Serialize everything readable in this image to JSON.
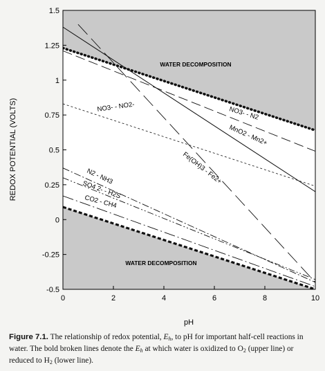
{
  "chart_data": {
    "type": "line",
    "xlabel": "pH",
    "ylabel": "REDOX POTENTIAL (VOLTS)",
    "xlim": [
      0,
      10
    ],
    "ylim": [
      -0.5,
      1.5
    ],
    "xticks": [
      "0",
      "2",
      "4",
      "6",
      "8",
      "10"
    ],
    "yticks": [
      "1.5",
      "1.25",
      "1",
      "0.75",
      "0.5",
      "0.25",
      "0",
      "-0.25",
      "-0.5"
    ],
    "region_labels": {
      "upper": "WATER DECOMPOSITION",
      "lower": "WATER DECOMPOSITION"
    },
    "series": [
      {
        "name": "water oxidation (O2)",
        "x": [
          0,
          10
        ],
        "y": [
          1.23,
          0.64
        ],
        "style": "bold-dotted"
      },
      {
        "name": "water reduction (H2)",
        "x": [
          0,
          10
        ],
        "y": [
          0.09,
          -0.5
        ],
        "style": "bold-dashed"
      },
      {
        "name": "NO3- - N2",
        "x": [
          0,
          10
        ],
        "y": [
          1.21,
          0.49
        ],
        "style": "long-dash"
      },
      {
        "name": "MnO2 - Mn2+",
        "x": [
          0,
          10
        ],
        "y": [
          1.38,
          0.2
        ],
        "style": "solid"
      },
      {
        "name": "NO3- - NO2-",
        "x": [
          0,
          10
        ],
        "y": [
          0.83,
          0.24
        ],
        "style": "short-dash"
      },
      {
        "name": "Fe(OH)3 - Fe2+",
        "x": [
          0.6,
          10
        ],
        "y": [
          1.4,
          -0.45
        ],
        "style": "long-dash-wide"
      },
      {
        "name": "N2 - NH3",
        "x": [
          0,
          10
        ],
        "y": [
          0.37,
          -0.45
        ],
        "style": "dash-dot"
      },
      {
        "name": "SO4 2- - H2S",
        "x": [
          0,
          10
        ],
        "y": [
          0.3,
          -0.43
        ],
        "style": "dash-dot-dot"
      },
      {
        "name": "CO2 - CH4",
        "x": [
          0,
          10
        ],
        "y": [
          0.17,
          -0.48
        ],
        "style": "long-dash-dot"
      }
    ],
    "line_labels": {
      "no3_n2": "NO3- - N2",
      "mno2": "MnO2 - Mn2+",
      "no3_no2": "NO3- - NO2-",
      "feoh3": "Fe(OH)3 - Fe2+",
      "n2_nh3": "N2 - NH3",
      "so4_h2s": "SO4 2- - H2S",
      "co2_ch4": "CO2 - CH4"
    }
  },
  "caption": {
    "figure_label": "Figure 7.1.",
    "text_1": "The relationship of redox potential,",
    "eh": "E",
    "eh_sub": "h",
    "text_2": ", to pH for important half-cell reactions in water. The bold broken lines denote the",
    "text_3": "at which water is oxidized to O",
    "text_4": "(upper line) or reduced to H",
    "text_5": "(lower line).",
    "sub_2": "2"
  }
}
